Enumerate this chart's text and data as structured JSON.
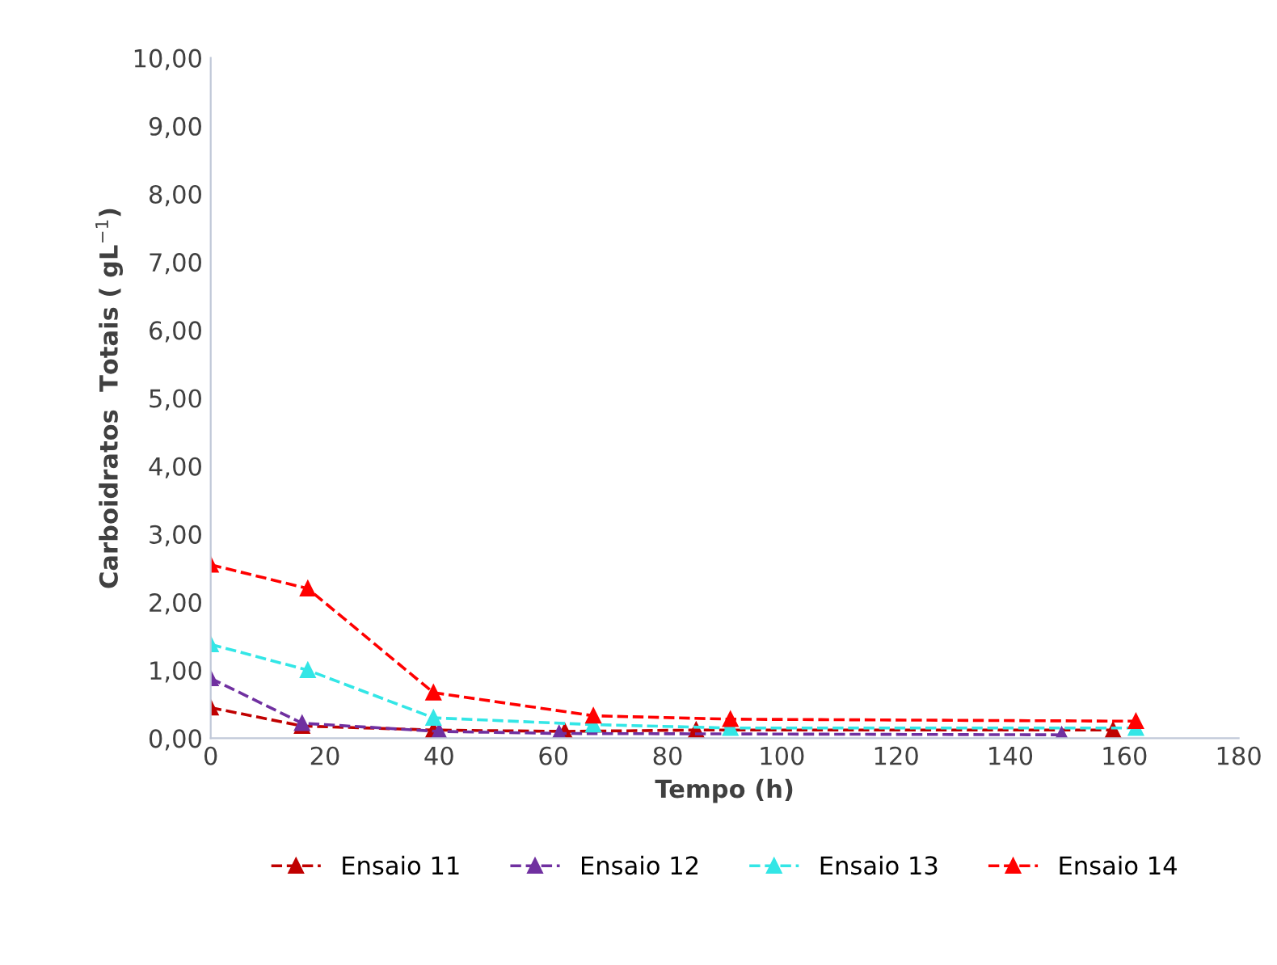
{
  "chart_data": {
    "type": "line",
    "xlabel": "Tempo (h)",
    "ylabel": "Carboidratos  Totais ( gL$^{−1}$)",
    "marker": "triangle",
    "line_style": "dashed",
    "grid": false,
    "legend": "bottom",
    "xlim": [
      0,
      180
    ],
    "xticks": [
      0,
      20,
      40,
      60,
      80,
      100,
      120,
      140,
      160,
      180
    ],
    "ylim": [
      0,
      10
    ],
    "yticks": [
      {
        "value": 0,
        "label": "0,00"
      },
      {
        "value": 1,
        "label": "1,00"
      },
      {
        "value": 2,
        "label": "2,00"
      },
      {
        "value": 3,
        "label": "3,00"
      },
      {
        "value": 4,
        "label": "4,00"
      },
      {
        "value": 5,
        "label": "5,00"
      },
      {
        "value": 6,
        "label": "6,00"
      },
      {
        "value": 7,
        "label": "7,00"
      },
      {
        "value": 8,
        "label": "8,00"
      },
      {
        "value": 9,
        "label": "9,00"
      },
      {
        "value": 10,
        "label": "10,00"
      }
    ],
    "series": [
      {
        "name": "Ensaio 11",
        "color": "#c00000",
        "x": [
          0,
          16,
          39,
          62,
          85,
          158
        ],
        "values": [
          0.45,
          0.18,
          0.12,
          0.1,
          0.12,
          0.12
        ]
      },
      {
        "name": "Ensaio 12",
        "color": "#7030a0",
        "x": [
          0,
          16,
          40,
          61,
          149
        ],
        "values": [
          0.88,
          0.22,
          0.1,
          0.07,
          0.05
        ]
      },
      {
        "name": "Ensaio 13",
        "color": "#33e6e6",
        "x": [
          0,
          17,
          39,
          67,
          91,
          162
        ],
        "values": [
          1.38,
          1.0,
          0.3,
          0.2,
          0.15,
          0.15
        ]
      },
      {
        "name": "Ensaio 14",
        "color": "#ff0000",
        "x": [
          0,
          17,
          39,
          67,
          91,
          162
        ],
        "values": [
          2.55,
          2.2,
          0.67,
          0.33,
          0.28,
          0.25
        ]
      }
    ]
  }
}
